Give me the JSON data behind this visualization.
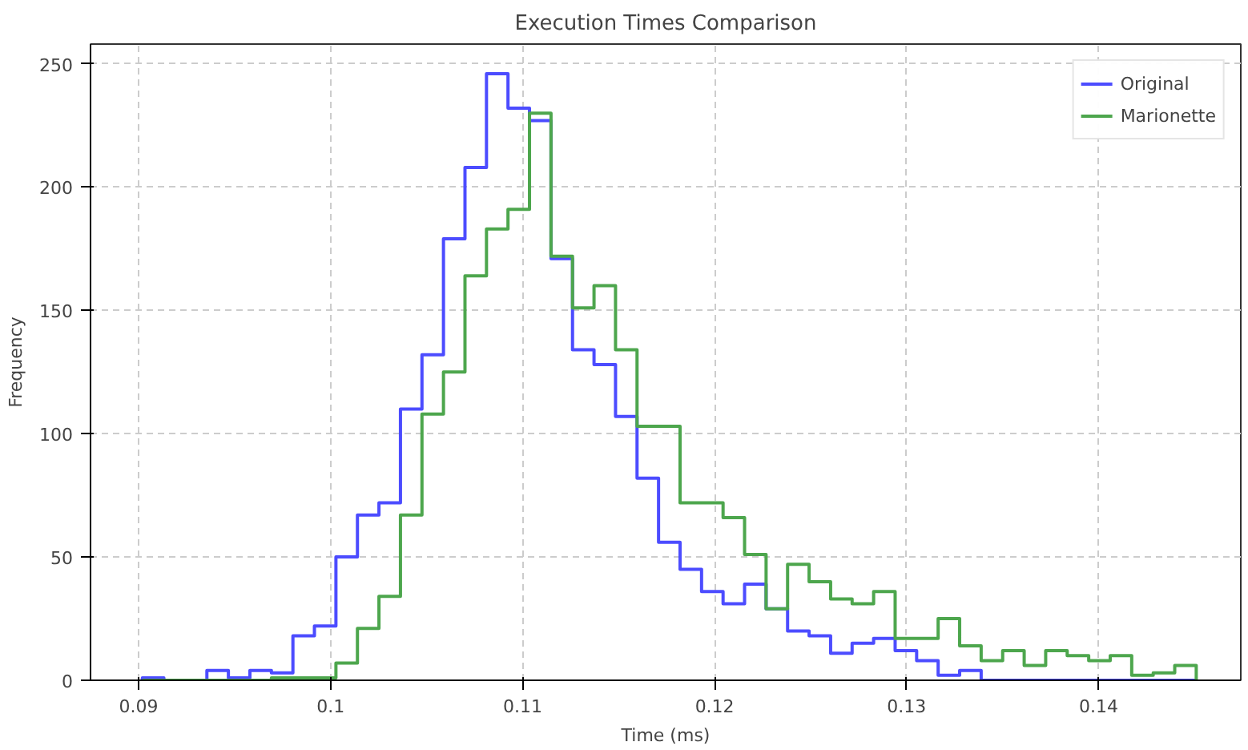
{
  "chart_data": {
    "type": "histogram",
    "title": "Execution Times Comparison",
    "xlabel": "Time (ms)",
    "ylabel": "Frequency",
    "xlim": [
      0.0875,
      0.1474
    ],
    "ylim": [
      0,
      258
    ],
    "xticks": [
      0.09,
      0.1,
      0.11,
      0.12,
      0.13,
      0.14
    ],
    "yticks": [
      0,
      50,
      100,
      150,
      200,
      250
    ],
    "grid": true,
    "legend": "top right",
    "line_style": "solid",
    "bins": [
      0.0902,
      0.09132,
      0.09244,
      0.09356,
      0.09468,
      0.0958,
      0.09692,
      0.09804,
      0.09916,
      0.10028,
      0.1014,
      0.10252,
      0.10364,
      0.10476,
      0.10588,
      0.107,
      0.10812,
      0.10924,
      0.11036,
      0.11148,
      0.1126,
      0.11372,
      0.11484,
      0.11596,
      0.11708,
      0.1182,
      0.11932,
      0.12044,
      0.12156,
      0.12268,
      0.1238,
      0.12492,
      0.12604,
      0.12716,
      0.12828,
      0.1294,
      0.13052,
      0.13164,
      0.13276,
      0.13388,
      0.135,
      0.13612,
      0.13724,
      0.13836,
      0.13948,
      0.1406,
      0.14172,
      0.14284,
      0.14396,
      0.14508
    ],
    "series": [
      {
        "name": "Original",
        "color": "#4c4cff",
        "values": [
          1,
          0,
          0,
          4,
          1,
          4,
          3,
          18,
          22,
          50,
          67,
          72,
          110,
          132,
          179,
          208,
          246,
          232,
          227,
          171,
          134,
          128,
          107,
          82,
          56,
          45,
          36,
          31,
          39,
          29,
          20,
          18,
          11,
          15,
          17,
          12,
          8,
          2,
          4,
          0,
          0,
          0,
          0,
          0,
          0,
          0,
          0,
          0,
          0
        ]
      },
      {
        "name": "Marionette",
        "color": "#4da64d",
        "values": [
          0,
          0,
          0,
          0,
          0,
          0,
          1,
          1,
          1,
          7,
          21,
          34,
          67,
          108,
          125,
          164,
          183,
          191,
          230,
          172,
          151,
          160,
          134,
          103,
          103,
          72,
          72,
          66,
          51,
          29,
          47,
          40,
          33,
          31,
          36,
          17,
          17,
          25,
          14,
          8,
          12,
          6,
          12,
          10,
          8,
          10,
          2,
          3,
          6
        ]
      }
    ]
  }
}
